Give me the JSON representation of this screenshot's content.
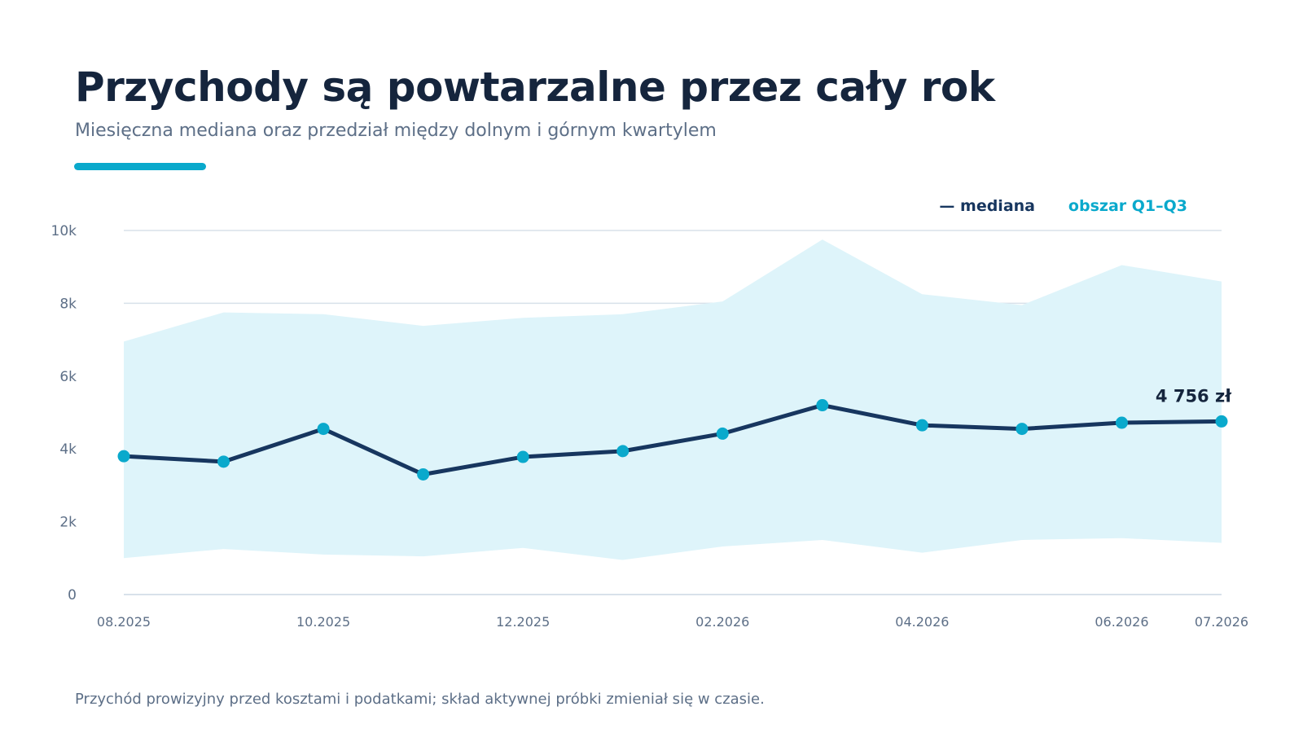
{
  "header": {
    "title": "Przychody są powtarzalne przez cały rok",
    "subtitle": "Miesięczna mediana oraz przedział między dolnym i górnym kwartylem"
  },
  "footnote": "Przychód prowizyjny przed kosztami i podatkami; skład aktywnej próbki zmieniał się w czasie.",
  "colors": {
    "title": "#15253d",
    "muted": "#5d6f87",
    "accent": "#0aa9cc",
    "median_line": "#17365f",
    "band": "#def4fa",
    "grid": "#d8e1ea",
    "marker": "#0aa9cc"
  },
  "chart_data": {
    "type": "line",
    "x": [
      "08.2025",
      "09.2025",
      "10.2025",
      "11.2025",
      "12.2025",
      "01.2026",
      "02.2026",
      "03.2026",
      "04.2026",
      "05.2026",
      "06.2026",
      "07.2026"
    ],
    "x_tick_labels": [
      "08.2025",
      "",
      "10.2025",
      "",
      "12.2025",
      "",
      "02.2026",
      "",
      "04.2026",
      "",
      "06.2026",
      "07.2026"
    ],
    "series": [
      {
        "name": "mediana",
        "values": [
          3800,
          3650,
          4550,
          3300,
          3780,
          3940,
          4420,
          5200,
          4650,
          4550,
          4720,
          4756
        ]
      }
    ],
    "band": {
      "name": "obszar Q1–Q3",
      "q1": [
        1000,
        1250,
        1100,
        1050,
        1280,
        950,
        1320,
        1500,
        1150,
        1500,
        1550,
        1420
      ],
      "q3": [
        6950,
        7750,
        7700,
        7380,
        7600,
        7700,
        8050,
        9750,
        8250,
        7950,
        9050,
        8600
      ]
    },
    "legend": {
      "median_label": "— mediana",
      "band_label": "obszar Q1–Q3",
      "placement": "top-right"
    },
    "y_ticks": [
      {
        "value": 0,
        "label": "0"
      },
      {
        "value": 2000,
        "label": "2k"
      },
      {
        "value": 4000,
        "label": "4k"
      },
      {
        "value": 6000,
        "label": "6k"
      },
      {
        "value": 8000,
        "label": "8k"
      },
      {
        "value": 10000,
        "label": "10k"
      }
    ],
    "ylim": [
      0,
      10000
    ],
    "grid": true,
    "last_value_label": "4 756 zł"
  }
}
